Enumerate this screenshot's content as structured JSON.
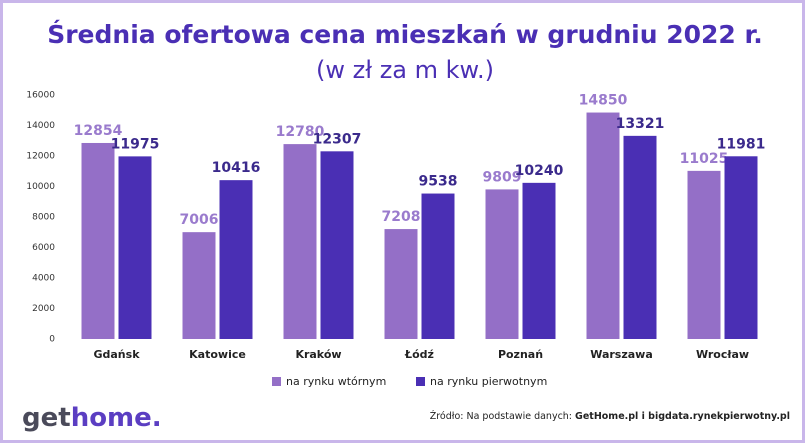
{
  "chart_data": {
    "type": "bar",
    "title": "Średnia ofertowa cena mieszkań w grudniu 2022 r.",
    "subtitle": "(w zł za m kw.)",
    "categories": [
      "Gdańsk",
      "Katowice",
      "Kraków",
      "Łódź",
      "Poznań",
      "Warszawa",
      "Wrocław"
    ],
    "series": [
      {
        "name": "na rynku wtórnym",
        "color": "#946fc7",
        "label_color": "#9a7bcd",
        "values": [
          12854,
          7006,
          12780,
          7208,
          9809,
          14850,
          11025
        ]
      },
      {
        "name": "na rynku pierwotnym",
        "color": "#4a2fb4",
        "label_color": "#3b2a8c",
        "values": [
          11975,
          10416,
          12307,
          9538,
          10240,
          13321,
          11981
        ]
      }
    ],
    "ylim": [
      0,
      16000
    ],
    "yticks": [
      0,
      2000,
      4000,
      6000,
      8000,
      10000,
      12000,
      14000,
      16000
    ],
    "grid": false,
    "legend": "bottom"
  },
  "logo": {
    "part1": "get",
    "part2": "home."
  },
  "footer": {
    "source_prefix": "Źródło: Na podstawie danych:",
    "source_bold": "GetHome.pl i bigdata.rynekpierwotny.pl"
  }
}
